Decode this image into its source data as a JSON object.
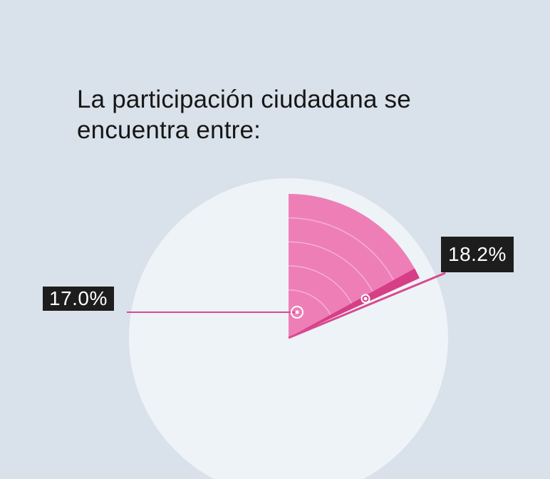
{
  "title_lines": [
    "La participación ciudadana se",
    "encuentra entre:"
  ],
  "chart_data": {
    "type": "pie",
    "title": "La participación ciudadana se encuentra entre:",
    "range_low": {
      "label": "17.0%",
      "value": 17.0
    },
    "range_high": {
      "label": "18.2%",
      "value": 18.2
    },
    "radial_levels": [
      0.333,
      0.5,
      0.667,
      0.833,
      1.0
    ]
  },
  "colors": {
    "background": "#d9e1ea",
    "pie_face": "#eef3f8",
    "sector_fill": "#ee7fb6",
    "range_band": "#d63f86",
    "leader_line": "#d94a8e",
    "callout_bg": "#1d1d1d",
    "callout_text": "#ffffff"
  }
}
